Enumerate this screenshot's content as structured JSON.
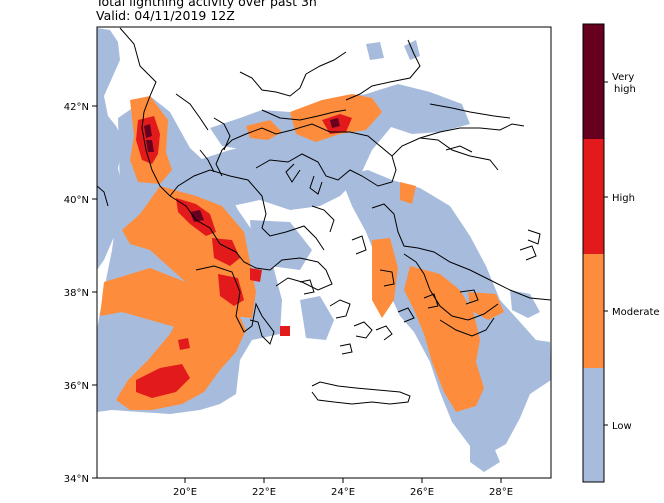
{
  "header": {
    "title": "Total lightning activity over past 3h",
    "valid": "Valid: 04/11/2019 12Z"
  },
  "axes": {
    "lat_ticks": [
      "42°N",
      "40°N",
      "38°N",
      "36°N",
      "34°N"
    ],
    "lon_ticks": [
      "20°E",
      "22°E",
      "24°E",
      "26°E",
      "28°E"
    ],
    "lat_range": [
      34,
      43.7
    ],
    "lon_range": [
      17.9,
      29.3
    ]
  },
  "legend": {
    "levels": [
      {
        "label": "Very high",
        "color": "#67001f"
      },
      {
        "label": "High",
        "color": "#e31a1c"
      },
      {
        "label": "Moderate",
        "color": "#fd8d3c"
      },
      {
        "label": "Low",
        "color": "#a7bcdd"
      }
    ]
  }
}
